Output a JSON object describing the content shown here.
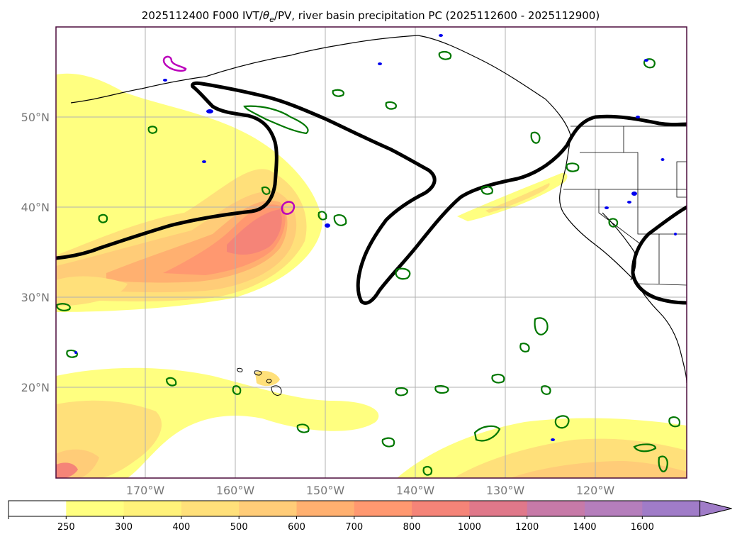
{
  "title": {
    "prefix": "2025112400 F000 IVT/",
    "theta": "θ",
    "theta_sub": "e",
    "suffix": "/PV, river basin precipitation PC (2025112600 - 2025112900)"
  },
  "map": {
    "lat_labels": [
      "50°N",
      "40°N",
      "30°N",
      "20°N"
    ],
    "lon_labels": [
      "170°W",
      "160°W",
      "150°W",
      "140°W",
      "130°W",
      "120°W"
    ],
    "grid": true
  },
  "colorbar": {
    "ticks": [
      "250",
      "300",
      "400",
      "500",
      "600",
      "700",
      "800",
      "1000",
      "1200",
      "1400",
      "1600"
    ],
    "colors": [
      "#ffffff",
      "#ffff80",
      "#fff27a",
      "#ffe07a",
      "#ffcc78",
      "#ffb070",
      "#ff9870",
      "#f58478",
      "#e0788a",
      "#c77aa8",
      "#b57ebc",
      "#a07cc8"
    ],
    "extend": "max"
  },
  "colors": {
    "ivt_yellow": "#ffff80",
    "ivt_orange": "#ffc878",
    "ivt_red": "#f58478",
    "pv_contour": "#000000",
    "theta_contour": "#007700",
    "precip_blue": "#0000ee",
    "magenta_contour": "#bb00bb"
  }
}
